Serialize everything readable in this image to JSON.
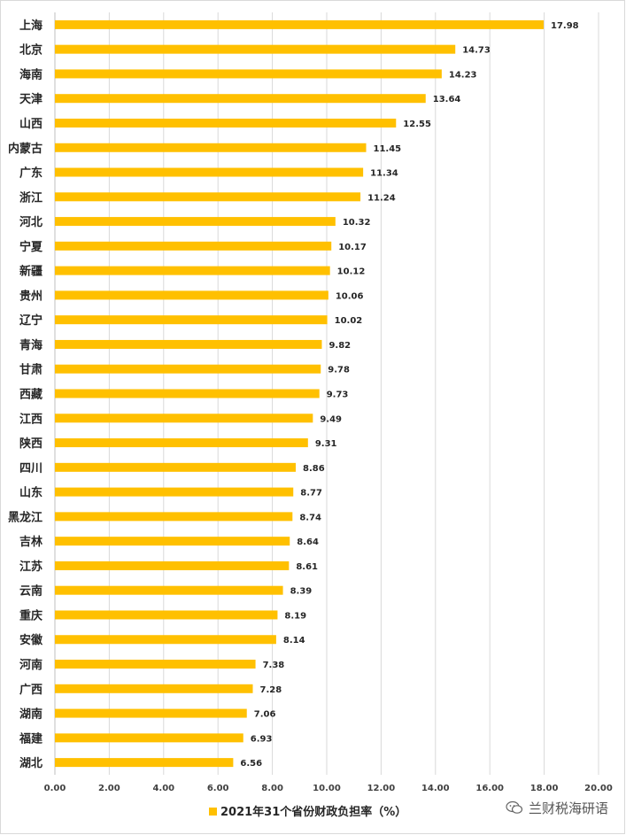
{
  "chart_data": {
    "type": "bar",
    "orientation": "horizontal",
    "categories": [
      "上海",
      "北京",
      "海南",
      "天津",
      "山西",
      "内蒙古",
      "广东",
      "浙江",
      "河北",
      "宁夏",
      "新疆",
      "贵州",
      "辽宁",
      "青海",
      "甘肃",
      "西藏",
      "江西",
      "陕西",
      "四川",
      "山东",
      "黑龙江",
      "吉林",
      "江苏",
      "云南",
      "重庆",
      "安徽",
      "河南",
      "广西",
      "湖南",
      "福建",
      "湖北"
    ],
    "values": [
      17.98,
      14.73,
      14.23,
      13.64,
      12.55,
      11.45,
      11.34,
      11.24,
      10.32,
      10.17,
      10.12,
      10.06,
      10.02,
      9.82,
      9.78,
      9.73,
      9.49,
      9.31,
      8.86,
      8.77,
      8.74,
      8.64,
      8.61,
      8.39,
      8.19,
      8.14,
      7.38,
      7.28,
      7.06,
      6.93,
      6.56
    ],
    "value_labels": [
      "17.98",
      "14.73",
      "14.23",
      "13.64",
      "12.55",
      "11.45",
      "11.34",
      "11.24",
      "10.32",
      "10.17",
      "10.12",
      "10.06",
      "10.02",
      "9.82",
      "9.78",
      "9.73",
      "9.49",
      "9.31",
      "8.86",
      "8.77",
      "8.74",
      "8.64",
      "8.61",
      "8.39",
      "8.19",
      "8.14",
      "7.38",
      "7.28",
      "7.06",
      "6.93",
      "6.56"
    ],
    "series": [
      {
        "name": "2021年31个省份财政负担率（%）"
      }
    ],
    "xlim": [
      0,
      20
    ],
    "xticks": [
      "0.00",
      "2.00",
      "4.00",
      "6.00",
      "8.00",
      "10.00",
      "12.00",
      "14.00",
      "16.00",
      "18.00",
      "20.00"
    ],
    "grid": "vertical",
    "legend_position": "bottom",
    "bar_color": "#FFC000",
    "gridline_color": "#d9d9d9"
  },
  "watermark": {
    "icon": "wechat-icon",
    "text": "兰财税海研语"
  }
}
